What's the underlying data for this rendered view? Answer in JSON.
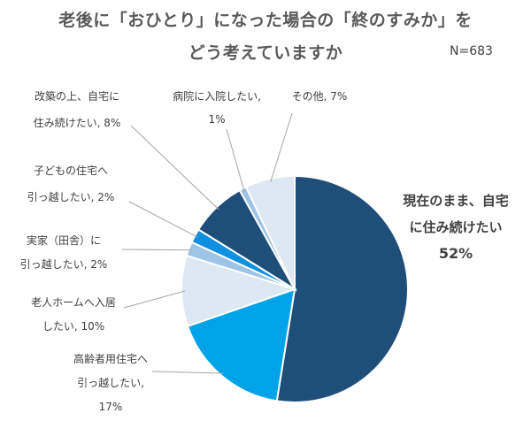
{
  "chart_data": {
    "type": "pie",
    "title_line1": "老後に「おひとり」になった場合の「終のすみか」を",
    "title_line2": "どう考えていますか",
    "n_label": "N=683",
    "start_angle_deg": 0,
    "direction": "clockwise",
    "slices": [
      {
        "name": "現在のまま、自宅に住み続けたい",
        "value": 52,
        "color": "#1f4e79",
        "label_lines": [
          "現在のまま、自宅",
          "に住み続けたい",
          "52%"
        ]
      },
      {
        "name": "高齢者用住宅へ引っ越したい",
        "value": 17,
        "color": "#00a2e8",
        "label_lines": [
          "高齢者用住宅へ",
          "引っ越したい,",
          "17%"
        ]
      },
      {
        "name": "老人ホームへ入居したい",
        "value": 10,
        "color": "#dde8f3",
        "label_lines": [
          "老人ホームへ入居",
          "したい, 10%"
        ]
      },
      {
        "name": "実家（田舎）に引っ越したい",
        "value": 2,
        "color": "#9dc3e6",
        "label_lines": [
          "実家（田舎）に",
          "引っ越したい, 2%"
        ]
      },
      {
        "name": "子どもの住宅へ引っ越したい",
        "value": 2,
        "color": "#1090e0",
        "label_lines": [
          "子どもの住宅へ",
          "引っ越したい, 2%"
        ]
      },
      {
        "name": "改築の上、自宅に住み続けたい",
        "value": 8,
        "color": "#1f4e79",
        "label_lines": [
          "改築の上、自宅に",
          "住み続けたい, 8%"
        ]
      },
      {
        "name": "病院に入院したい",
        "value": 1,
        "color": "#9dc3e6",
        "label_lines": [
          "病院に入院したい,",
          "1%"
        ]
      },
      {
        "name": "その他",
        "value": 7,
        "color": "#dde8f3",
        "label_lines": [
          "その他, 7%"
        ]
      }
    ]
  }
}
